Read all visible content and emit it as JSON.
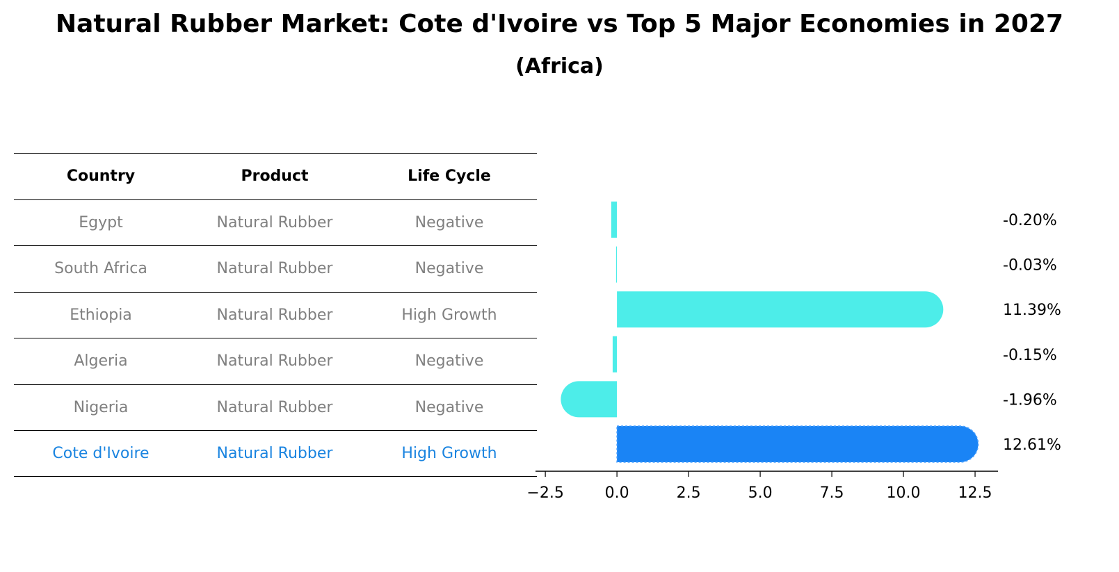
{
  "title": "Natural Rubber Market: Cote d'Ivoire vs Top 5 Major Economies in 2027",
  "subtitle": "(Africa)",
  "table": {
    "headers": [
      "Country",
      "Product",
      "Life Cycle"
    ],
    "rows": [
      [
        "Egypt",
        "Natural Rubber",
        "Negative"
      ],
      [
        "South Africa",
        "Natural Rubber",
        "Negative"
      ],
      [
        "Ethiopia",
        "Natural Rubber",
        "High Growth"
      ],
      [
        "Algeria",
        "Natural Rubber",
        "Negative"
      ],
      [
        "Nigeria",
        "Natural Rubber",
        "Negative"
      ],
      [
        "Cote d'Ivoire",
        "Natural Rubber",
        "High Growth"
      ]
    ]
  },
  "chart_data": {
    "type": "bar",
    "orientation": "horizontal",
    "categories": [
      "Egypt",
      "South Africa",
      "Ethiopia",
      "Algeria",
      "Nigeria",
      "Cote d'Ivoire"
    ],
    "values": [
      -0.2,
      -0.03,
      11.39,
      -0.15,
      -1.96,
      12.61
    ],
    "labels": [
      "-0.20%",
      "-0.03%",
      "11.39%",
      "-0.15%",
      "-1.96%",
      "12.61%"
    ],
    "highlight": "Cote d'Ivoire",
    "xlim": [
      -2.6,
      13.3
    ],
    "xticks": [
      -2.5,
      0.0,
      2.5,
      5.0,
      7.5,
      10.0,
      12.5
    ],
    "xtick_labels": [
      "−2.5",
      "0.0",
      "2.5",
      "5.0",
      "7.5",
      "10.0",
      "12.5"
    ],
    "colors": {
      "default": "#4dede9",
      "highlight": "#1a84f5"
    }
  }
}
